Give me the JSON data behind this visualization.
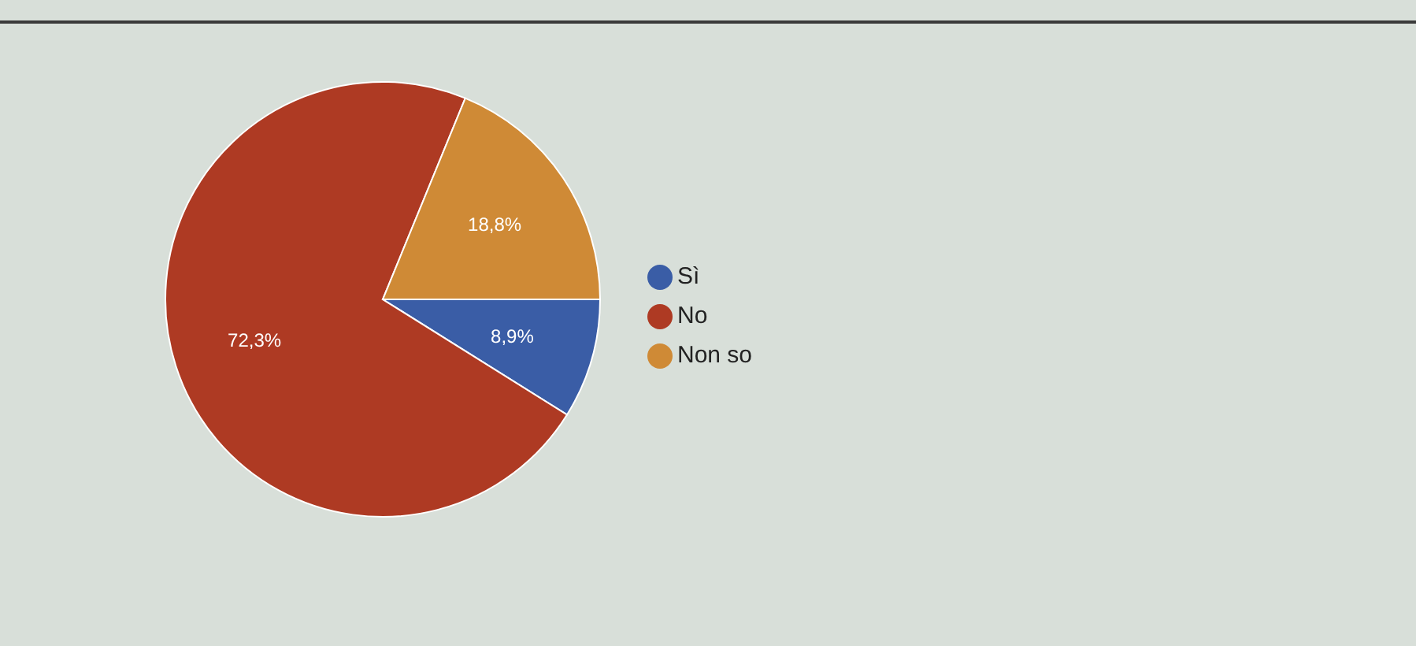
{
  "chart_data": {
    "type": "pie",
    "categories": [
      "Sì",
      "No",
      "Non so"
    ],
    "values": [
      8.9,
      72.3,
      18.8
    ],
    "colors": [
      "#3a5da6",
      "#ae3a23",
      "#cf8a36"
    ],
    "value_labels": [
      "8,9%",
      "72,3%",
      "18,8%"
    ],
    "legend": "right"
  }
}
